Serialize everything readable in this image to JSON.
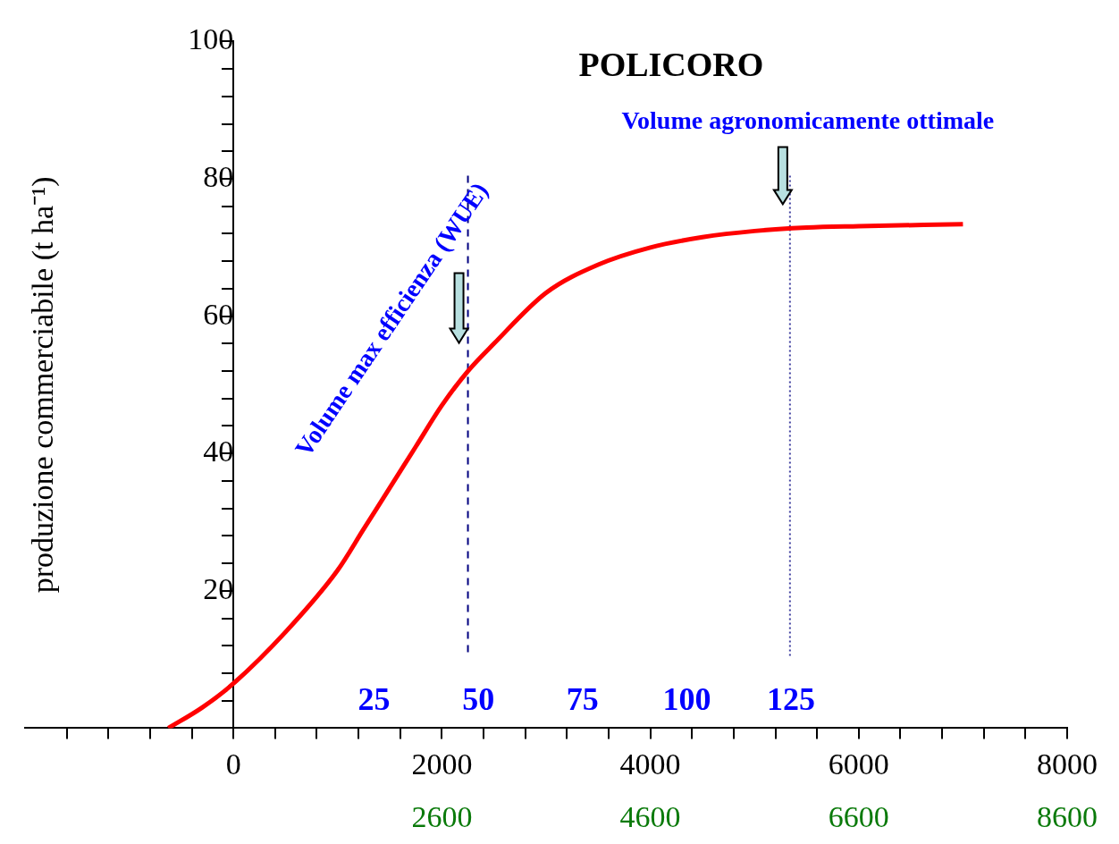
{
  "chart_data": {
    "type": "line",
    "title": "POLICORO",
    "ylabel": "produzione commerciabile (t ha⁻¹)",
    "x": [
      -625,
      -300,
      0,
      500,
      1000,
      1250,
      1500,
      1750,
      2000,
      2250,
      2500,
      3000,
      3500,
      4000,
      4500,
      5000,
      5500,
      6000,
      7000
    ],
    "series": [
      {
        "color": "#ff0000",
        "values": [
          0,
          3,
          6.5,
          14,
          23,
          29,
          35,
          41,
          47,
          52,
          56,
          63.4,
          67.5,
          70,
          71.5,
          72.4,
          72.9,
          73.1,
          73.4
        ]
      }
    ],
    "xlim": [
      -2000,
      8000
    ],
    "xticks": [
      {
        "value": -1600,
        "label": null
      },
      {
        "value": -1200,
        "label": null
      },
      {
        "value": -800,
        "label": null
      },
      {
        "value": -400,
        "label": null
      },
      0,
      {
        "value": 400,
        "label": null
      },
      {
        "value": 800,
        "label": null
      },
      {
        "value": 1200,
        "label": null
      },
      {
        "value": 1600,
        "label": null
      },
      2000,
      {
        "value": 2400,
        "label": null
      },
      {
        "value": 2800,
        "label": null
      },
      {
        "value": 3200,
        "label": null
      },
      {
        "value": 3600,
        "label": null
      },
      4000,
      {
        "value": 4400,
        "label": null
      },
      {
        "value": 4800,
        "label": null
      },
      {
        "value": 5200,
        "label": null
      },
      {
        "value": 5600,
        "label": null
      },
      6000,
      {
        "value": 6400,
        "label": null
      },
      {
        "value": 6800,
        "label": null
      },
      {
        "value": 7200,
        "label": null
      },
      {
        "value": 7600,
        "label": null
      },
      8000
    ],
    "x2lim": [
      -1400,
      8600
    ],
    "x2ticks": [
      2600,
      4600,
      6600,
      8600
    ],
    "ylim": [
      0,
      100
    ],
    "yticks": [
      {
        "value": 4,
        "label": null
      },
      {
        "value": 8,
        "label": null
      },
      {
        "value": 12,
        "label": null
      },
      {
        "value": 16,
        "label": null
      },
      20,
      {
        "value": 24,
        "label": null
      },
      {
        "value": 28,
        "label": null
      },
      {
        "value": 32,
        "label": null
      },
      {
        "value": 36,
        "label": null
      },
      40,
      {
        "value": 44,
        "label": null
      },
      {
        "value": 48,
        "label": null
      },
      {
        "value": 52,
        "label": null
      },
      {
        "value": 56,
        "label": null
      },
      60,
      {
        "value": 64,
        "label": null
      },
      {
        "value": 68,
        "label": null
      },
      {
        "value": 72,
        "label": null
      },
      {
        "value": 76,
        "label": null
      },
      80,
      {
        "value": 84,
        "label": null
      },
      {
        "value": 88,
        "label": null
      },
      {
        "value": 92,
        "label": null
      },
      {
        "value": 96,
        "label": null
      },
      100
    ],
    "ref_lines": [
      {
        "axis": "x",
        "value": 2250,
        "color": "#000080",
        "line_style": "dashed"
      },
      {
        "axis": "x",
        "value": 5340,
        "color": "#4040a0",
        "line_style": "dotted"
      }
    ],
    "annotations": [
      {
        "text": "Volume max efficienza (WUE)",
        "x": 2250,
        "y": 60
      },
      "Volume agronomicamente ottimale",
      "25",
      "50",
      "75",
      "100",
      "125"
    ],
    "grid": false,
    "legend": false,
    "marker": "none",
    "line_style": "solid"
  }
}
